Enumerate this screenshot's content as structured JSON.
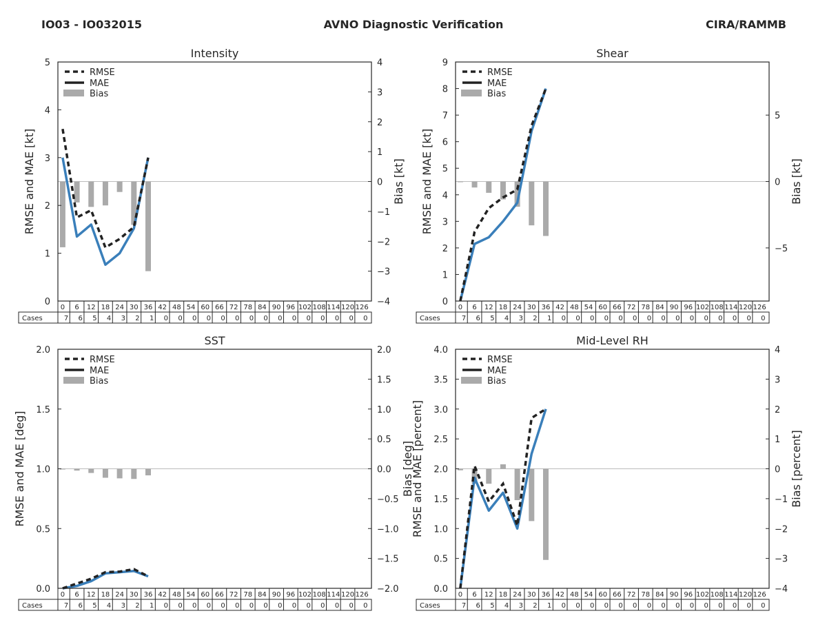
{
  "header": {
    "left": "IO03 - IO032015",
    "center": "AVNO Diagnostic Verification",
    "right": "CIRA/RAMMB"
  },
  "colors": {
    "rmse": "#222222",
    "mae": "#3a7fba",
    "bias": "#aaaaaa",
    "zero_line": "#bbbbbb"
  },
  "legend": {
    "rmse": "RMSE",
    "mae": "MAE",
    "bias": "Bias"
  },
  "table": {
    "cases_label": "Cases",
    "taus": [
      0,
      6,
      12,
      18,
      24,
      30,
      36,
      42,
      48,
      54,
      60,
      66,
      72,
      78,
      84,
      90,
      96,
      102,
      108,
      114,
      120,
      126
    ],
    "cases": [
      7,
      6,
      5,
      4,
      3,
      2,
      1,
      0,
      0,
      0,
      0,
      0,
      0,
      0,
      0,
      0,
      0,
      0,
      0,
      0,
      0,
      0
    ]
  },
  "chart_data": [
    {
      "type": "line",
      "title": "Intensity",
      "ylabel": "RMSE and MAE [kt]",
      "y2label": "Bias [kt]",
      "ylim": [
        0,
        5
      ],
      "yticks": [
        0,
        1,
        2,
        3,
        4,
        5
      ],
      "ytick_labels": [
        "0",
        "1",
        "2",
        "3",
        "4",
        "5"
      ],
      "y2lim": [
        -4,
        4
      ],
      "y2ticks": [
        -4,
        -3,
        -2,
        -1,
        0,
        1,
        2,
        3,
        4
      ],
      "y2tick_labels": [
        "−4",
        "−3",
        "−2",
        "−1",
        "0",
        "1",
        "2",
        "3",
        "4"
      ],
      "x": [
        0,
        6,
        12,
        18,
        24,
        30,
        36
      ],
      "series": [
        {
          "name": "RMSE",
          "values": [
            3.6,
            1.75,
            1.9,
            1.12,
            1.3,
            1.55,
            3.0
          ]
        },
        {
          "name": "MAE",
          "values": [
            3.0,
            1.35,
            1.6,
            0.76,
            1.0,
            1.52,
            3.0
          ]
        },
        {
          "name": "Bias",
          "values": [
            -2.2,
            -0.7,
            -0.85,
            -0.8,
            -0.35,
            -1.45,
            -3.0
          ]
        }
      ]
    },
    {
      "type": "line",
      "title": "Shear",
      "ylabel": "RMSE and MAE [kt]",
      "y2label": "Bias [kt]",
      "ylim": [
        0,
        9
      ],
      "yticks": [
        0,
        1,
        2,
        3,
        4,
        5,
        6,
        7,
        8,
        9
      ],
      "ytick_labels": [
        "0",
        "1",
        "2",
        "3",
        "4",
        "5",
        "6",
        "7",
        "8",
        "9"
      ],
      "y2lim": [
        -9,
        9
      ],
      "y2ticks": [
        -5,
        0,
        5
      ],
      "y2tick_labels": [
        "−5",
        "0",
        "5"
      ],
      "x": [
        0,
        6,
        12,
        18,
        24,
        30,
        36
      ],
      "series": [
        {
          "name": "RMSE",
          "values": [
            0.0,
            2.6,
            3.5,
            3.9,
            4.2,
            6.6,
            8.0
          ]
        },
        {
          "name": "MAE",
          "values": [
            0.0,
            2.15,
            2.4,
            3.0,
            3.7,
            6.4,
            8.0
          ]
        },
        {
          "name": "Bias",
          "values": [
            -0.05,
            -0.45,
            -0.85,
            -1.35,
            -1.9,
            -3.3,
            -4.1
          ]
        }
      ]
    },
    {
      "type": "line",
      "title": "SST",
      "ylabel": "RMSE and MAE [deg]",
      "y2label": "Bias [deg]",
      "ylim": [
        0,
        2
      ],
      "yticks": [
        0,
        0.5,
        1,
        1.5,
        2
      ],
      "ytick_labels": [
        "0.0",
        "0.5",
        "1.0",
        "1.5",
        "2.0"
      ],
      "y2lim": [
        -2,
        2
      ],
      "y2ticks": [
        -2,
        -1.5,
        -1,
        -0.5,
        0,
        0.5,
        1,
        1.5,
        2
      ],
      "y2tick_labels": [
        "−2.0",
        "−1.5",
        "−1.0",
        "−0.5",
        "0.0",
        "0.5",
        "1.0",
        "1.5",
        "2.0"
      ],
      "x": [
        0,
        6,
        12,
        18,
        24,
        30,
        36
      ],
      "series": [
        {
          "name": "RMSE",
          "values": [
            0.0,
            0.04,
            0.08,
            0.135,
            0.14,
            0.16,
            0.1
          ]
        },
        {
          "name": "MAE",
          "values": [
            0.0,
            0.02,
            0.06,
            0.125,
            0.135,
            0.145,
            0.1
          ]
        },
        {
          "name": "Bias",
          "values": [
            -0.005,
            -0.03,
            -0.07,
            -0.15,
            -0.16,
            -0.17,
            -0.11
          ]
        }
      ]
    },
    {
      "type": "line",
      "title": "Mid-Level RH",
      "ylabel": "RMSE and MAE [percent]",
      "y2label": "Bias [percent]",
      "ylim": [
        0,
        4
      ],
      "yticks": [
        0,
        0.5,
        1,
        1.5,
        2,
        2.5,
        3,
        3.5,
        4
      ],
      "ytick_labels": [
        "0.0",
        "0.5",
        "1.0",
        "1.5",
        "2.0",
        "2.5",
        "3.0",
        "3.5",
        "4.0"
      ],
      "y2lim": [
        -4,
        4
      ],
      "y2ticks": [
        -4,
        -3,
        -2,
        -1,
        0,
        1,
        2,
        3,
        4
      ],
      "y2tick_labels": [
        "−4",
        "−3",
        "−2",
        "−1",
        "0",
        "1",
        "2",
        "3",
        "4"
      ],
      "x": [
        0,
        6,
        12,
        18,
        24,
        30,
        36
      ],
      "series": [
        {
          "name": "RMSE",
          "values": [
            0.0,
            2.05,
            1.45,
            1.75,
            1.05,
            2.85,
            3.0
          ]
        },
        {
          "name": "MAE",
          "values": [
            0.0,
            1.85,
            1.3,
            1.6,
            1.0,
            2.25,
            3.0
          ]
        },
        {
          "name": "Bias",
          "values": [
            -0.05,
            -0.5,
            -0.5,
            0.15,
            -1.05,
            -1.75,
            -3.05
          ]
        }
      ]
    }
  ]
}
